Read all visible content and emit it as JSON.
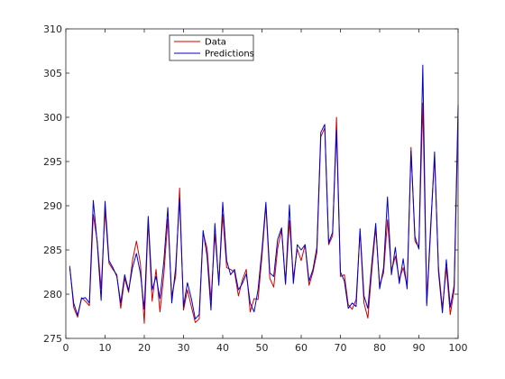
{
  "chart_data": {
    "type": "line",
    "title": "",
    "xlabel": "",
    "ylabel": "",
    "xlim": [
      0,
      100
    ],
    "ylim": [
      275,
      310
    ],
    "x_ticks": [
      0,
      10,
      20,
      30,
      40,
      50,
      60,
      70,
      80,
      90,
      100
    ],
    "y_ticks": [
      275,
      280,
      285,
      290,
      295,
      300,
      305,
      310
    ],
    "grid": false,
    "legend_position": "top-left-center",
    "x": [
      1,
      2,
      3,
      4,
      5,
      6,
      7,
      8,
      9,
      10,
      11,
      12,
      13,
      14,
      15,
      16,
      17,
      18,
      19,
      20,
      21,
      22,
      23,
      24,
      25,
      26,
      27,
      28,
      29,
      30,
      31,
      32,
      33,
      34,
      35,
      36,
      37,
      38,
      39,
      40,
      41,
      42,
      43,
      44,
      45,
      46,
      47,
      48,
      49,
      50,
      51,
      52,
      53,
      54,
      55,
      56,
      57,
      58,
      59,
      60,
      61,
      62,
      63,
      64,
      65,
      66,
      67,
      68,
      69,
      70,
      71,
      72,
      73,
      74,
      75,
      76,
      77,
      78,
      79,
      80,
      81,
      82,
      83,
      84,
      85,
      86,
      87,
      88,
      89,
      90,
      91,
      92,
      93,
      94,
      95,
      96,
      97,
      98,
      99,
      100
    ],
    "series": [
      {
        "name": "Data",
        "color": "#d00000",
        "values": [
          283.2,
          278.5,
          277.4,
          279.6,
          279.2,
          278.7,
          289.0,
          286.0,
          280.6,
          289.5,
          283.5,
          282.8,
          282.2,
          278.4,
          281.8,
          280.2,
          283.8,
          286.0,
          283.5,
          276.7,
          288.3,
          279.2,
          282.8,
          278.0,
          282.3,
          288.5,
          279.8,
          282.0,
          292.0,
          278.2,
          280.5,
          278.6,
          276.8,
          277.2,
          286.9,
          285.2,
          279.3,
          286.8,
          281.3,
          289.0,
          283.0,
          282.8,
          282.5,
          279.8,
          281.6,
          282.8,
          278.0,
          279.5,
          279.4,
          284.3,
          290.0,
          281.8,
          280.8,
          285.2,
          287.3,
          281.1,
          288.3,
          281.8,
          285.1,
          283.8,
          285.6,
          281.0,
          282.5,
          284.7,
          297.8,
          298.8,
          285.6,
          286.6,
          300.0,
          282.0,
          282.2,
          278.8,
          278.3,
          279.4,
          287.1,
          279.0,
          277.3,
          282.7,
          287.5,
          281.0,
          282.4,
          288.4,
          282.6,
          284.3,
          281.7,
          283.0,
          280.9,
          296.6,
          286.0,
          285.3,
          301.6,
          279.0,
          287.8,
          295.5,
          283.0,
          278.4,
          283.0,
          277.7,
          280.5,
          299.8
        ]
      },
      {
        "name": "Predictions",
        "color": "#0000d0",
        "values": [
          283.0,
          279.0,
          277.6,
          279.5,
          279.6,
          279.0,
          290.6,
          285.8,
          279.3,
          290.5,
          283.8,
          283.0,
          282.0,
          279.0,
          282.2,
          280.4,
          283.0,
          284.6,
          282.4,
          278.3,
          288.8,
          280.5,
          282.0,
          279.5,
          283.8,
          289.8,
          279.0,
          283.0,
          290.8,
          278.6,
          281.3,
          279.5,
          277.2,
          277.7,
          287.2,
          284.3,
          278.2,
          288.0,
          281.0,
          290.4,
          283.8,
          282.2,
          282.8,
          280.5,
          281.2,
          282.3,
          279.0,
          278.0,
          280.5,
          285.0,
          290.4,
          282.4,
          282.0,
          286.2,
          287.5,
          281.2,
          290.1,
          281.2,
          285.6,
          285.0,
          285.6,
          281.5,
          282.8,
          285.3,
          298.3,
          299.2,
          285.8,
          287.0,
          298.5,
          282.5,
          281.5,
          278.4,
          279.0,
          278.6,
          287.4,
          279.8,
          278.4,
          283.5,
          288.0,
          280.6,
          283.0,
          291.0,
          282.2,
          285.3,
          281.2,
          284.0,
          280.6,
          296.2,
          286.5,
          285.1,
          305.9,
          278.7,
          287.2,
          296.1,
          282.5,
          277.9,
          283.9,
          278.5,
          281.0,
          301.4
        ]
      }
    ]
  }
}
